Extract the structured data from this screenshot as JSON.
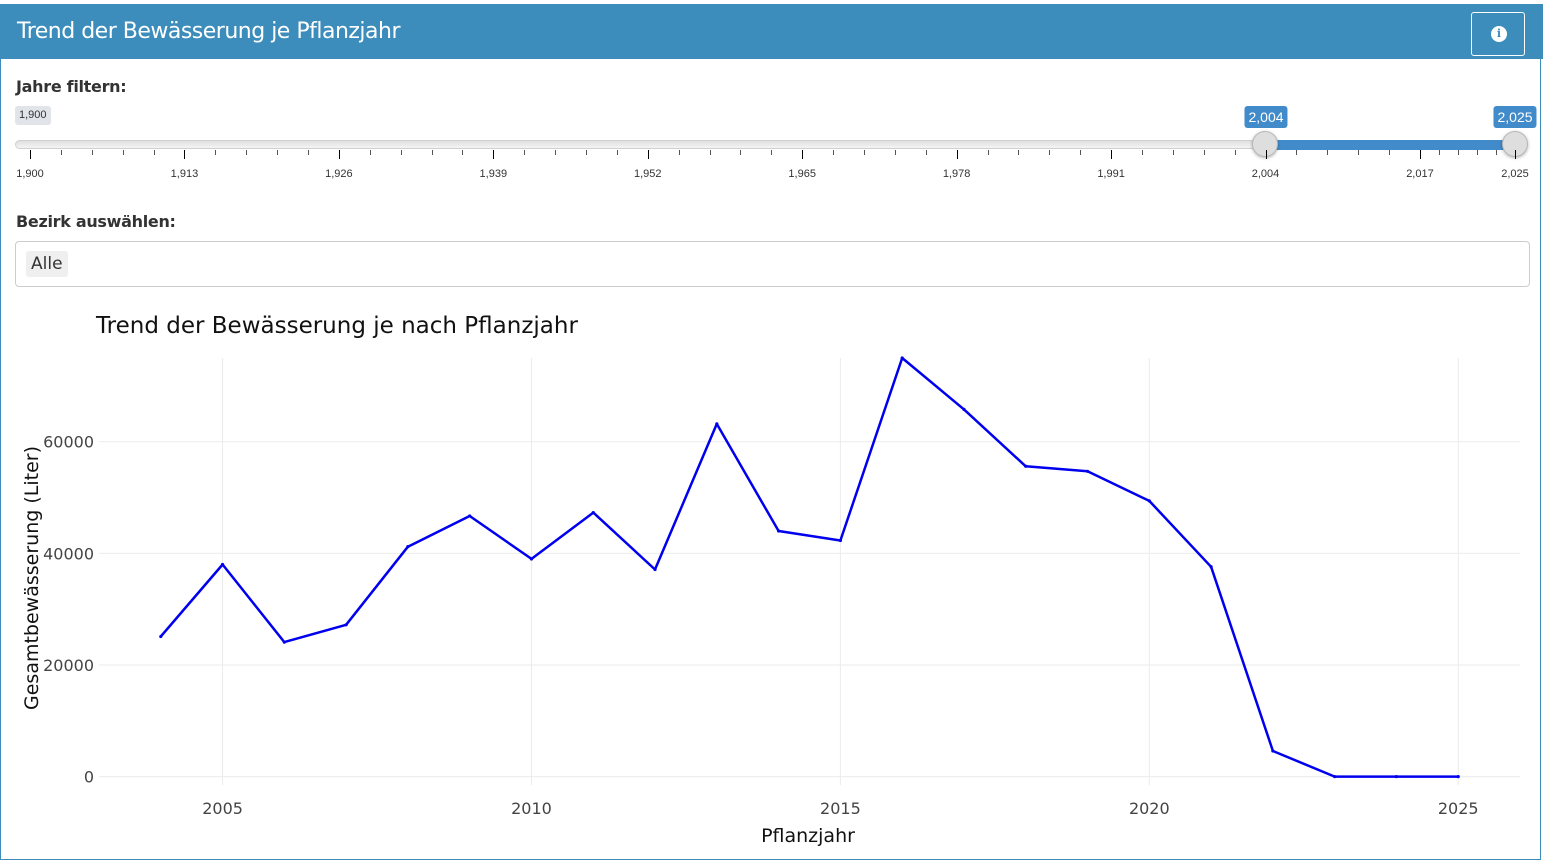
{
  "header": {
    "title": "Trend der Bewässerung je Pflanzjahr",
    "info_icon": "info-icon",
    "info_glyph": "i"
  },
  "filters": {
    "years_label": "Jahre filtern:",
    "slider": {
      "min": 1900,
      "max": 2025,
      "from": 2004,
      "to": 2025,
      "min_label": "1,900",
      "from_label": "2,004",
      "to_label": "2,025",
      "grid_labels": [
        "1,900",
        "1,913",
        "1,926",
        "1,939",
        "1,952",
        "1,965",
        "1,978",
        "1,991",
        "2,004",
        "2,017",
        "2,025"
      ],
      "grid_values": [
        1900,
        1913,
        1926,
        1939,
        1952,
        1965,
        1978,
        1991,
        2004,
        2017,
        2025
      ]
    },
    "district_label": "Bezirk auswählen:",
    "district_selected": "Alle"
  },
  "chart_data": {
    "type": "line",
    "title": "Trend der Bewässerung je nach Pflanzjahr",
    "xlabel": "Pflanzjahr",
    "ylabel": "Gesamtbewässerung (Liter)",
    "xlim": [
      2003,
      2026
    ],
    "ylim": [
      -1500,
      75000
    ],
    "x_ticks": [
      2005,
      2010,
      2015,
      2020,
      2025
    ],
    "y_ticks": [
      0,
      20000,
      40000,
      60000
    ],
    "grid": true,
    "colors": {
      "line": "#0000ee",
      "grid": "#ebebeb"
    },
    "x": [
      2004,
      2005,
      2006,
      2007,
      2008,
      2009,
      2010,
      2011,
      2012,
      2013,
      2014,
      2015,
      2016,
      2017,
      2018,
      2019,
      2020,
      2021,
      2022,
      2023,
      2024,
      2025
    ],
    "y": [
      25100,
      38000,
      24100,
      27200,
      41200,
      46700,
      39000,
      47300,
      37100,
      63200,
      44000,
      42300,
      75000,
      65800,
      55600,
      54700,
      49400,
      37600,
      4600,
      0,
      0,
      0
    ]
  }
}
